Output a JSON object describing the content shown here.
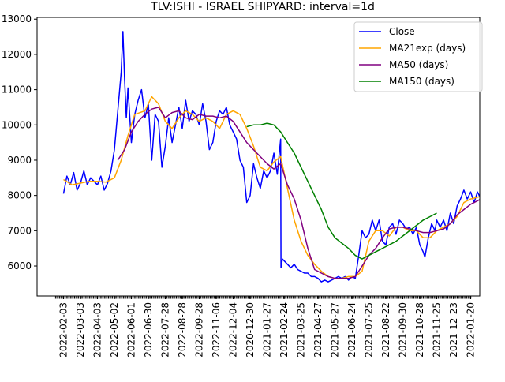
{
  "chart_data": {
    "type": "line",
    "title": "TLV:ISHI - ISRAEL SHIPYARD: interval=1d",
    "xlabel": "",
    "ylabel": "",
    "x_ticks": [
      "2022-02-03",
      "2022-03-03",
      "2022-04-03",
      "2022-05-02",
      "2022-06-01",
      "2022-06-30",
      "2022-07-28",
      "2022-08-28",
      "2022-09-28",
      "2022-11-06",
      "2022-12-04",
      "2020-12-30",
      "2021-01-27",
      "2021-02-24",
      "2021-03-25",
      "2021-04-27",
      "2021-05-27",
      "2021-06-24",
      "2021-07-25",
      "2021-08-22",
      "2021-09-30",
      "2021-10-28",
      "2021-11-25",
      "2021-12-23",
      "2022-01-20"
    ],
    "y_ticks": [
      6000,
      7000,
      8000,
      9000,
      10000,
      11000,
      12000,
      13000
    ],
    "y_tick_labels": [
      "6000",
      "7000",
      "8000",
      "9000",
      "10000",
      "11000",
      "12000",
      "13000"
    ],
    "ylim": [
      5150,
      13050
    ],
    "xlim": [
      -0.6,
      25.0
    ],
    "legend_position": "upper-right",
    "grid": false,
    "series": [
      {
        "name": "Close",
        "color": "#0000ff",
        "points": [
          [
            0,
            8050
          ],
          [
            0.2,
            8550
          ],
          [
            0.4,
            8300
          ],
          [
            0.6,
            8650
          ],
          [
            0.8,
            8150
          ],
          [
            1,
            8350
          ],
          [
            1.2,
            8700
          ],
          [
            1.4,
            8300
          ],
          [
            1.6,
            8500
          ],
          [
            1.8,
            8400
          ],
          [
            2,
            8300
          ],
          [
            2.2,
            8550
          ],
          [
            2.4,
            8150
          ],
          [
            2.6,
            8350
          ],
          [
            2.8,
            8700
          ],
          [
            3,
            9300
          ],
          [
            3.2,
            10400
          ],
          [
            3.4,
            11500
          ],
          [
            3.5,
            12650
          ],
          [
            3.6,
            11300
          ],
          [
            3.7,
            10200
          ],
          [
            3.8,
            11050
          ],
          [
            4,
            9500
          ],
          [
            4.2,
            10300
          ],
          [
            4.4,
            10700
          ],
          [
            4.6,
            11000
          ],
          [
            4.8,
            10200
          ],
          [
            5,
            10600
          ],
          [
            5.2,
            9000
          ],
          [
            5.4,
            10300
          ],
          [
            5.6,
            10100
          ],
          [
            5.8,
            8800
          ],
          [
            6,
            9400
          ],
          [
            6.2,
            10200
          ],
          [
            6.4,
            9500
          ],
          [
            6.6,
            10000
          ],
          [
            6.8,
            10500
          ],
          [
            7,
            9900
          ],
          [
            7.2,
            10700
          ],
          [
            7.4,
            10100
          ],
          [
            7.6,
            10400
          ],
          [
            7.8,
            10300
          ],
          [
            8,
            10000
          ],
          [
            8.2,
            10600
          ],
          [
            8.4,
            10100
          ],
          [
            8.6,
            9300
          ],
          [
            8.8,
            9500
          ],
          [
            9,
            10100
          ],
          [
            9.2,
            10400
          ],
          [
            9.4,
            10300
          ],
          [
            9.6,
            10500
          ],
          [
            9.8,
            10000
          ],
          [
            10,
            9800
          ],
          [
            10.2,
            9600
          ],
          [
            10.4,
            9000
          ],
          [
            10.6,
            8800
          ],
          [
            10.8,
            7800
          ],
          [
            11,
            8000
          ],
          [
            11.2,
            8900
          ],
          [
            11.4,
            8500
          ],
          [
            11.6,
            8200
          ],
          [
            11.8,
            8700
          ],
          [
            12,
            8500
          ],
          [
            12.2,
            8700
          ],
          [
            12.4,
            9200
          ],
          [
            12.6,
            8600
          ],
          [
            12.8,
            9600
          ],
          [
            12.82,
            5950
          ],
          [
            12.9,
            6200
          ],
          [
            13,
            6150
          ],
          [
            13.2,
            6050
          ],
          [
            13.4,
            5950
          ],
          [
            13.6,
            6050
          ],
          [
            13.8,
            5900
          ],
          [
            14,
            5850
          ],
          [
            14.2,
            5800
          ],
          [
            14.4,
            5800
          ],
          [
            14.6,
            5700
          ],
          [
            14.8,
            5700
          ],
          [
            15,
            5650
          ],
          [
            15.2,
            5550
          ],
          [
            15.4,
            5600
          ],
          [
            15.6,
            5550
          ],
          [
            15.8,
            5600
          ],
          [
            16,
            5650
          ],
          [
            16.2,
            5700
          ],
          [
            16.4,
            5650
          ],
          [
            16.6,
            5700
          ],
          [
            16.8,
            5600
          ],
          [
            17,
            5700
          ],
          [
            17.2,
            5650
          ],
          [
            17.4,
            6300
          ],
          [
            17.6,
            7000
          ],
          [
            17.8,
            6800
          ],
          [
            18,
            6900
          ],
          [
            18.2,
            7300
          ],
          [
            18.4,
            7000
          ],
          [
            18.6,
            7300
          ],
          [
            18.8,
            6700
          ],
          [
            19,
            6600
          ],
          [
            19.2,
            7100
          ],
          [
            19.4,
            7200
          ],
          [
            19.6,
            6900
          ],
          [
            19.8,
            7300
          ],
          [
            20,
            7200
          ],
          [
            20.2,
            7050
          ],
          [
            20.4,
            7100
          ],
          [
            20.6,
            6900
          ],
          [
            20.8,
            7100
          ],
          [
            21,
            6600
          ],
          [
            21.2,
            6400
          ],
          [
            21.3,
            6250
          ],
          [
            21.5,
            6800
          ],
          [
            21.7,
            7200
          ],
          [
            21.9,
            7000
          ],
          [
            22,
            7300
          ],
          [
            22.2,
            7100
          ],
          [
            22.4,
            7300
          ],
          [
            22.6,
            7000
          ],
          [
            22.8,
            7500
          ],
          [
            23,
            7200
          ],
          [
            23.2,
            7700
          ],
          [
            23.4,
            7900
          ],
          [
            23.6,
            8150
          ],
          [
            23.8,
            7900
          ],
          [
            24,
            8100
          ],
          [
            24.2,
            7800
          ],
          [
            24.4,
            8100
          ],
          [
            24.6,
            7900
          ],
          [
            24.8,
            8200
          ],
          [
            25,
            8100
          ],
          [
            25.2,
            7850
          ],
          [
            25.4,
            8100
          ],
          [
            25.6,
            8350
          ],
          [
            25.7,
            8800
          ],
          [
            25.8,
            8600
          ],
          [
            25.9,
            8400
          ],
          [
            26,
            8600
          ]
        ]
      },
      {
        "name": "MA21exp (days)",
        "color": "#ffa500",
        "points": [
          [
            0,
            8450
          ],
          [
            0.5,
            8300
          ],
          [
            1,
            8350
          ],
          [
            1.5,
            8400
          ],
          [
            2,
            8400
          ],
          [
            2.5,
            8380
          ],
          [
            3,
            8500
          ],
          [
            3.4,
            9000
          ],
          [
            3.8,
            9700
          ],
          [
            4.2,
            10300
          ],
          [
            4.8,
            10400
          ],
          [
            5.2,
            10800
          ],
          [
            5.6,
            10600
          ],
          [
            6,
            10100
          ],
          [
            6.4,
            9900
          ],
          [
            6.8,
            10200
          ],
          [
            7.2,
            10400
          ],
          [
            7.6,
            10300
          ],
          [
            8,
            10100
          ],
          [
            8.4,
            10200
          ],
          [
            8.8,
            10100
          ],
          [
            9.2,
            9900
          ],
          [
            9.6,
            10300
          ],
          [
            10,
            10400
          ],
          [
            10.4,
            10300
          ],
          [
            10.8,
            9900
          ],
          [
            11.2,
            9400
          ],
          [
            11.6,
            8800
          ],
          [
            12,
            8700
          ],
          [
            12.4,
            8950
          ],
          [
            12.8,
            9100
          ],
          [
            13.2,
            8200
          ],
          [
            13.6,
            7300
          ],
          [
            14,
            6700
          ],
          [
            14.4,
            6300
          ],
          [
            14.8,
            6050
          ],
          [
            15.2,
            5850
          ],
          [
            15.6,
            5700
          ],
          [
            16,
            5650
          ],
          [
            16.4,
            5650
          ],
          [
            16.8,
            5700
          ],
          [
            17.2,
            5700
          ],
          [
            17.6,
            5850
          ],
          [
            18,
            6700
          ],
          [
            18.4,
            7000
          ],
          [
            18.8,
            7000
          ],
          [
            19.2,
            6850
          ],
          [
            19.6,
            7100
          ],
          [
            20,
            7100
          ],
          [
            20.4,
            7000
          ],
          [
            20.8,
            7000
          ],
          [
            21.2,
            6800
          ],
          [
            21.6,
            6800
          ],
          [
            22,
            7000
          ],
          [
            22.4,
            7100
          ],
          [
            22.8,
            7200
          ],
          [
            23.2,
            7400
          ],
          [
            23.6,
            7800
          ],
          [
            24,
            7900
          ],
          [
            24.4,
            7950
          ],
          [
            24.8,
            8000
          ],
          [
            25.2,
            7900
          ],
          [
            25.6,
            8100
          ],
          [
            26,
            8350
          ]
        ]
      },
      {
        "name": "MA50 (days)",
        "color": "#800080",
        "points": [
          [
            3.2,
            9000
          ],
          [
            3.6,
            9300
          ],
          [
            4,
            9800
          ],
          [
            4.4,
            10100
          ],
          [
            4.8,
            10300
          ],
          [
            5.2,
            10450
          ],
          [
            5.6,
            10500
          ],
          [
            6,
            10200
          ],
          [
            6.4,
            10350
          ],
          [
            6.8,
            10400
          ],
          [
            7.2,
            10200
          ],
          [
            7.6,
            10150
          ],
          [
            8,
            10300
          ],
          [
            8.4,
            10250
          ],
          [
            8.8,
            10250
          ],
          [
            9.2,
            10200
          ],
          [
            9.6,
            10250
          ],
          [
            10,
            10100
          ],
          [
            10.4,
            9800
          ],
          [
            10.8,
            9500
          ],
          [
            11.2,
            9300
          ],
          [
            11.6,
            9100
          ],
          [
            12,
            8900
          ],
          [
            12.4,
            8750
          ],
          [
            12.8,
            8900
          ],
          [
            13.2,
            8300
          ],
          [
            13.6,
            7900
          ],
          [
            14,
            7300
          ],
          [
            14.4,
            6500
          ],
          [
            14.8,
            5900
          ],
          [
            15.2,
            5800
          ],
          [
            15.6,
            5700
          ],
          [
            16,
            5650
          ],
          [
            16.4,
            5650
          ],
          [
            16.8,
            5650
          ],
          [
            17.2,
            5700
          ],
          [
            17.6,
            6000
          ],
          [
            18,
            6300
          ],
          [
            18.4,
            6500
          ],
          [
            18.8,
            6800
          ],
          [
            19.2,
            7050
          ],
          [
            19.6,
            7100
          ],
          [
            20,
            7100
          ],
          [
            20.4,
            7050
          ],
          [
            20.8,
            7000
          ],
          [
            21.2,
            6950
          ],
          [
            21.6,
            6950
          ],
          [
            22,
            7000
          ],
          [
            22.4,
            7050
          ],
          [
            22.8,
            7200
          ],
          [
            23.2,
            7450
          ],
          [
            23.6,
            7600
          ],
          [
            24,
            7750
          ],
          [
            24.4,
            7850
          ],
          [
            24.8,
            7950
          ],
          [
            25.2,
            8000
          ],
          [
            25.6,
            8050
          ],
          [
            26,
            8150
          ]
        ]
      },
      {
        "name": "MA150 (days)",
        "color": "#008000",
        "points": [
          [
            10.8,
            9950
          ],
          [
            11.2,
            10000
          ],
          [
            11.6,
            10000
          ],
          [
            12,
            10050
          ],
          [
            12.4,
            10000
          ],
          [
            12.8,
            9800
          ],
          [
            13.2,
            9500
          ],
          [
            13.6,
            9200
          ],
          [
            14,
            8800
          ],
          [
            14.4,
            8400
          ],
          [
            14.8,
            8000
          ],
          [
            15.2,
            7600
          ],
          [
            15.6,
            7100
          ],
          [
            16,
            6800
          ],
          [
            16.4,
            6650
          ],
          [
            16.8,
            6500
          ],
          [
            17.2,
            6300
          ],
          [
            17.6,
            6200
          ],
          [
            18,
            6300
          ],
          [
            18.4,
            6400
          ],
          [
            18.8,
            6500
          ],
          [
            19.2,
            6600
          ],
          [
            19.6,
            6700
          ],
          [
            20,
            6850
          ],
          [
            20.4,
            7000
          ],
          [
            20.8,
            7150
          ],
          [
            21.2,
            7300
          ],
          [
            21.6,
            7400
          ],
          [
            22,
            7500
          ]
        ]
      }
    ]
  }
}
